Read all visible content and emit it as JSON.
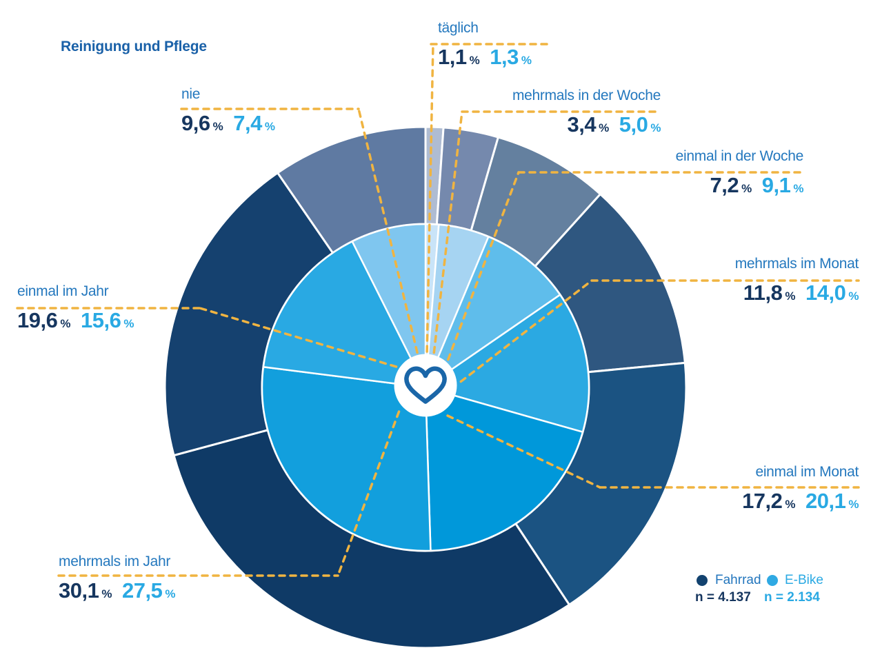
{
  "chart_data": {
    "type": "pie",
    "variant": "double_donut",
    "title": "Reinigung und Pflege",
    "percent_sign": "%",
    "start_angle": "12-oclock",
    "direction": "clockwise",
    "center_icon": "heart-icon",
    "connector_color": "#F0B441",
    "category_label_color": "#2478BE",
    "categories": [
      "täglich",
      "mehrmals in der Woche",
      "einmal in der Woche",
      "mehrmals im Monat",
      "einmal im Monat",
      "mehrmals im Jahr",
      "einmal im Jahr",
      "nie"
    ],
    "series": [
      {
        "name": "Fahrrad",
        "ring": "outer",
        "n_label": "n = 4.137",
        "values": [
          1.1,
          3.4,
          7.2,
          11.8,
          17.2,
          30.1,
          19.6,
          9.6
        ],
        "value_labels": [
          "1,1",
          "3,4",
          "7,2",
          "11,8",
          "17,2",
          "30,1",
          "19,6",
          "9,6"
        ],
        "colors": [
          "#AFBCD2",
          "#7589AD",
          "#64809F",
          "#2F5780",
          "#1B5382",
          "#0F3A66",
          "#15416F",
          "#5F7AA2"
        ],
        "value_color": "#16365F"
      },
      {
        "name": "E-Bike",
        "ring": "inner",
        "n_label": "n = 2.134",
        "values": [
          1.3,
          5.0,
          9.1,
          14.0,
          20.1,
          27.5,
          15.6,
          7.4
        ],
        "value_labels": [
          "1,3",
          "5,0",
          "9,1",
          "14,0",
          "20,1",
          "27,5",
          "15,6",
          "7,4"
        ],
        "colors": [
          "#C9E4F8",
          "#A6D4F2",
          "#5FBDEB",
          "#2BA9E2",
          "#0098DA",
          "#129FDD",
          "#29A9E3",
          "#7FC6EF"
        ],
        "value_color": "#29A9E3"
      }
    ],
    "legend": {
      "position": "bottom-right",
      "items": [
        {
          "label": "Fahrrad",
          "n_label": "n = 4.137",
          "color": "#12426F",
          "text_color": "#2376BD",
          "n_color": "#16365F"
        },
        {
          "label": "E-Bike",
          "n_label": "n = 2.134",
          "color": "#2FA9E3",
          "text_color": "#2AA9E3",
          "n_color": "#2AA9E3"
        }
      ]
    }
  }
}
